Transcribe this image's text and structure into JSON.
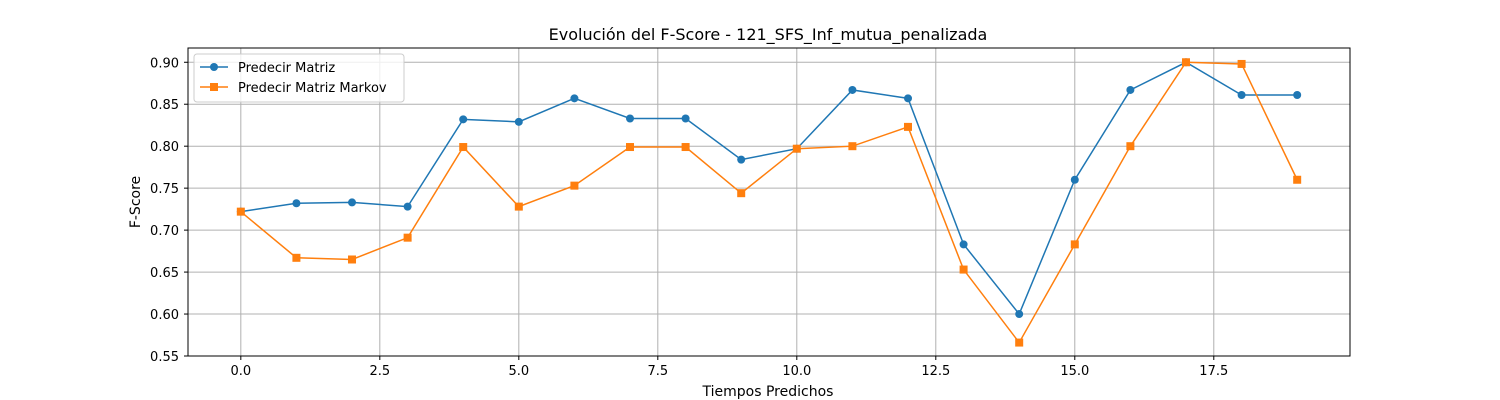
{
  "chart_data": {
    "type": "line",
    "title": "Evolución del F-Score - 121_SFS_Inf_mutua_penalizada",
    "xlabel": "Tiempos Predichos",
    "ylabel": "F-Score",
    "xlim": [
      -0.95,
      19.95
    ],
    "ylim": [
      0.55,
      0.917
    ],
    "xticks": [
      0.0,
      2.5,
      5.0,
      7.5,
      10.0,
      12.5,
      15.0,
      17.5
    ],
    "xtick_labels": [
      "0.0",
      "2.5",
      "5.0",
      "7.5",
      "10.0",
      "12.5",
      "15.0",
      "17.5"
    ],
    "yticks": [
      0.55,
      0.6,
      0.65,
      0.7,
      0.75,
      0.8,
      0.85,
      0.9
    ],
    "ytick_labels": [
      "0.55",
      "0.60",
      "0.65",
      "0.70",
      "0.75",
      "0.80",
      "0.85",
      "0.90"
    ],
    "grid": true,
    "legend_position": "top-left",
    "x": [
      0,
      1,
      2,
      3,
      4,
      5,
      6,
      7,
      8,
      9,
      10,
      11,
      12,
      13,
      14,
      15,
      16,
      17,
      18,
      19
    ],
    "series": [
      {
        "name": "Predecir Matriz",
        "color": "#1f77b4",
        "marker": "circle",
        "values": [
          0.722,
          0.732,
          0.733,
          0.728,
          0.832,
          0.829,
          0.857,
          0.833,
          0.833,
          0.784,
          0.797,
          0.867,
          0.857,
          0.683,
          0.6,
          0.76,
          0.867,
          0.9,
          0.861,
          0.861
        ]
      },
      {
        "name": "Predecir Matriz Markov",
        "color": "#ff7f0e",
        "marker": "square",
        "values": [
          0.722,
          0.667,
          0.665,
          0.691,
          0.799,
          0.728,
          0.753,
          0.799,
          0.799,
          0.744,
          0.797,
          0.8,
          0.823,
          0.653,
          0.566,
          0.683,
          0.8,
          0.9,
          0.898,
          0.76
        ]
      }
    ]
  }
}
